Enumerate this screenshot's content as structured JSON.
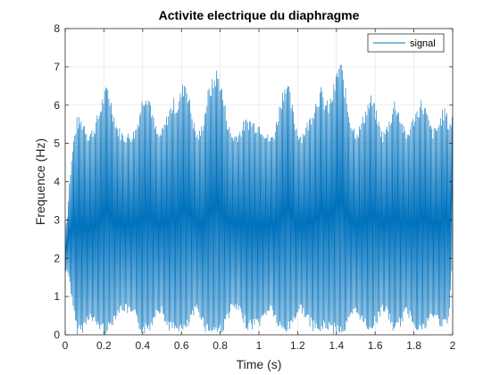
{
  "chart_data": {
    "type": "line",
    "title": "Activite electrique du diaphragme",
    "xlabel": "Time (s)",
    "ylabel": "Frequence (Hz)",
    "xlim": [
      0,
      2
    ],
    "ylim": [
      0,
      8
    ],
    "xticks": [
      0,
      0.2,
      0.4,
      0.6,
      0.8,
      1,
      1.2,
      1.4,
      1.6,
      1.8,
      2
    ],
    "xtick_labels": [
      "0",
      "0.2",
      "0.4",
      "0.6",
      "0.8",
      "1",
      "1.2",
      "1.4",
      "1.6",
      "1.8",
      "2"
    ],
    "yticks": [
      0,
      1,
      2,
      3,
      4,
      5,
      6,
      7,
      8
    ],
    "ytick_labels": [
      "0",
      "1",
      "2",
      "3",
      "4",
      "5",
      "6",
      "7",
      "8"
    ],
    "grid": true,
    "legend_position": "top-right",
    "series": [
      {
        "name": "signal",
        "color": "#0072BD",
        "oscillation_center": 2.7,
        "upper_envelope": {
          "x": [
            0,
            0.01,
            0.02,
            0.04,
            0.06,
            0.08,
            0.1,
            0.12,
            0.15,
            0.18,
            0.2,
            0.22,
            0.24,
            0.27,
            0.3,
            0.33,
            0.36,
            0.38,
            0.4,
            0.42,
            0.44,
            0.46,
            0.48,
            0.5,
            0.52,
            0.54,
            0.56,
            0.58,
            0.6,
            0.62,
            0.64,
            0.66,
            0.68,
            0.7,
            0.72,
            0.74,
            0.76,
            0.78,
            0.8,
            0.82,
            0.84,
            0.86,
            0.88,
            0.9,
            0.92,
            0.94,
            0.96,
            0.98,
            1.0,
            1.02,
            1.04,
            1.06,
            1.08,
            1.1,
            1.12,
            1.14,
            1.16,
            1.18,
            1.2,
            1.22,
            1.24,
            1.26,
            1.28,
            1.3,
            1.32,
            1.34,
            1.36,
            1.38,
            1.4,
            1.42,
            1.44,
            1.46,
            1.48,
            1.5,
            1.52,
            1.54,
            1.56,
            1.58,
            1.6,
            1.62,
            1.64,
            1.66,
            1.68,
            1.7,
            1.72,
            1.74,
            1.76,
            1.78,
            1.8,
            1.82,
            1.84,
            1.86,
            1.88,
            1.9,
            1.92,
            1.94,
            1.96,
            1.98,
            2.0
          ],
          "y": [
            2.9,
            3.0,
            3.9,
            5.0,
            5.7,
            5.7,
            5.6,
            5.3,
            5.5,
            6.0,
            6.4,
            6.6,
            6.1,
            5.5,
            5.3,
            5.3,
            5.4,
            5.8,
            6.3,
            6.5,
            6.2,
            5.6,
            5.3,
            5.4,
            5.7,
            6.0,
            6.2,
            6.1,
            6.5,
            6.8,
            6.3,
            5.7,
            5.3,
            5.4,
            5.9,
            6.5,
            6.7,
            7.0,
            6.8,
            6.2,
            5.6,
            5.3,
            5.3,
            5.4,
            5.6,
            5.7,
            5.7,
            5.6,
            5.6,
            5.5,
            5.3,
            5.2,
            5.4,
            5.9,
            6.4,
            6.8,
            6.4,
            5.8,
            5.4,
            5.3,
            5.5,
            5.7,
            6.0,
            6.3,
            6.5,
            6.2,
            6.1,
            6.4,
            6.9,
            7.3,
            6.7,
            6.0,
            5.6,
            5.4,
            5.5,
            5.8,
            6.1,
            6.3,
            6.0,
            5.6,
            5.3,
            5.5,
            5.8,
            6.2,
            6.0,
            5.6,
            5.3,
            5.5,
            5.8,
            6.0,
            6.2,
            6.0,
            5.6,
            5.4,
            5.5,
            5.8,
            6.0,
            5.6,
            5.8
          ]
        },
        "lower_envelope": {
          "x": [
            0,
            0.01,
            0.02,
            0.04,
            0.06,
            0.08,
            0.1,
            0.12,
            0.15,
            0.18,
            0.2,
            0.22,
            0.24,
            0.27,
            0.3,
            0.33,
            0.36,
            0.38,
            0.4,
            0.42,
            0.44,
            0.46,
            0.48,
            0.5,
            0.52,
            0.54,
            0.56,
            0.58,
            0.6,
            0.62,
            0.64,
            0.66,
            0.68,
            0.7,
            0.72,
            0.74,
            0.76,
            0.78,
            0.8,
            0.82,
            0.84,
            0.86,
            0.88,
            0.9,
            0.92,
            0.94,
            0.96,
            0.98,
            1.0,
            1.02,
            1.04,
            1.06,
            1.08,
            1.1,
            1.12,
            1.14,
            1.16,
            1.18,
            1.2,
            1.22,
            1.24,
            1.26,
            1.28,
            1.3,
            1.32,
            1.34,
            1.36,
            1.38,
            1.4,
            1.42,
            1.44,
            1.46,
            1.48,
            1.5,
            1.52,
            1.54,
            1.56,
            1.58,
            1.6,
            1.62,
            1.64,
            1.66,
            1.68,
            1.7,
            1.72,
            1.74,
            1.76,
            1.78,
            1.8,
            1.82,
            1.84,
            1.86,
            1.88,
            1.9,
            1.92,
            1.94,
            1.96,
            1.98,
            2.0
          ],
          "y": [
            1.6,
            1.6,
            1.5,
            0.6,
            0.0,
            0.0,
            0.1,
            0.4,
            0.2,
            0.1,
            0.0,
            0.0,
            0.2,
            0.5,
            0.6,
            0.5,
            0.4,
            0.1,
            0.0,
            0.0,
            0.1,
            0.4,
            0.6,
            0.5,
            0.2,
            0.1,
            0.0,
            0.1,
            0.0,
            0.0,
            0.2,
            0.4,
            0.6,
            0.4,
            0.1,
            0.0,
            0.0,
            0.0,
            0.0,
            0.1,
            0.4,
            0.6,
            0.6,
            0.5,
            0.3,
            0.1,
            0.1,
            0.2,
            0.2,
            0.3,
            0.5,
            0.6,
            0.4,
            0.1,
            0.0,
            0.0,
            0.1,
            0.3,
            0.5,
            0.6,
            0.4,
            0.2,
            0.1,
            0.0,
            0.0,
            0.1,
            0.1,
            0.0,
            0.0,
            0.0,
            0.0,
            0.2,
            0.4,
            0.5,
            0.4,
            0.2,
            0.1,
            0.1,
            0.2,
            0.4,
            0.6,
            0.5,
            0.2,
            0.0,
            0.1,
            0.3,
            0.5,
            0.4,
            0.2,
            0.1,
            0.0,
            0.1,
            0.3,
            0.4,
            0.3,
            0.2,
            0.1,
            0.3,
            2.0
          ]
        }
      }
    ]
  }
}
